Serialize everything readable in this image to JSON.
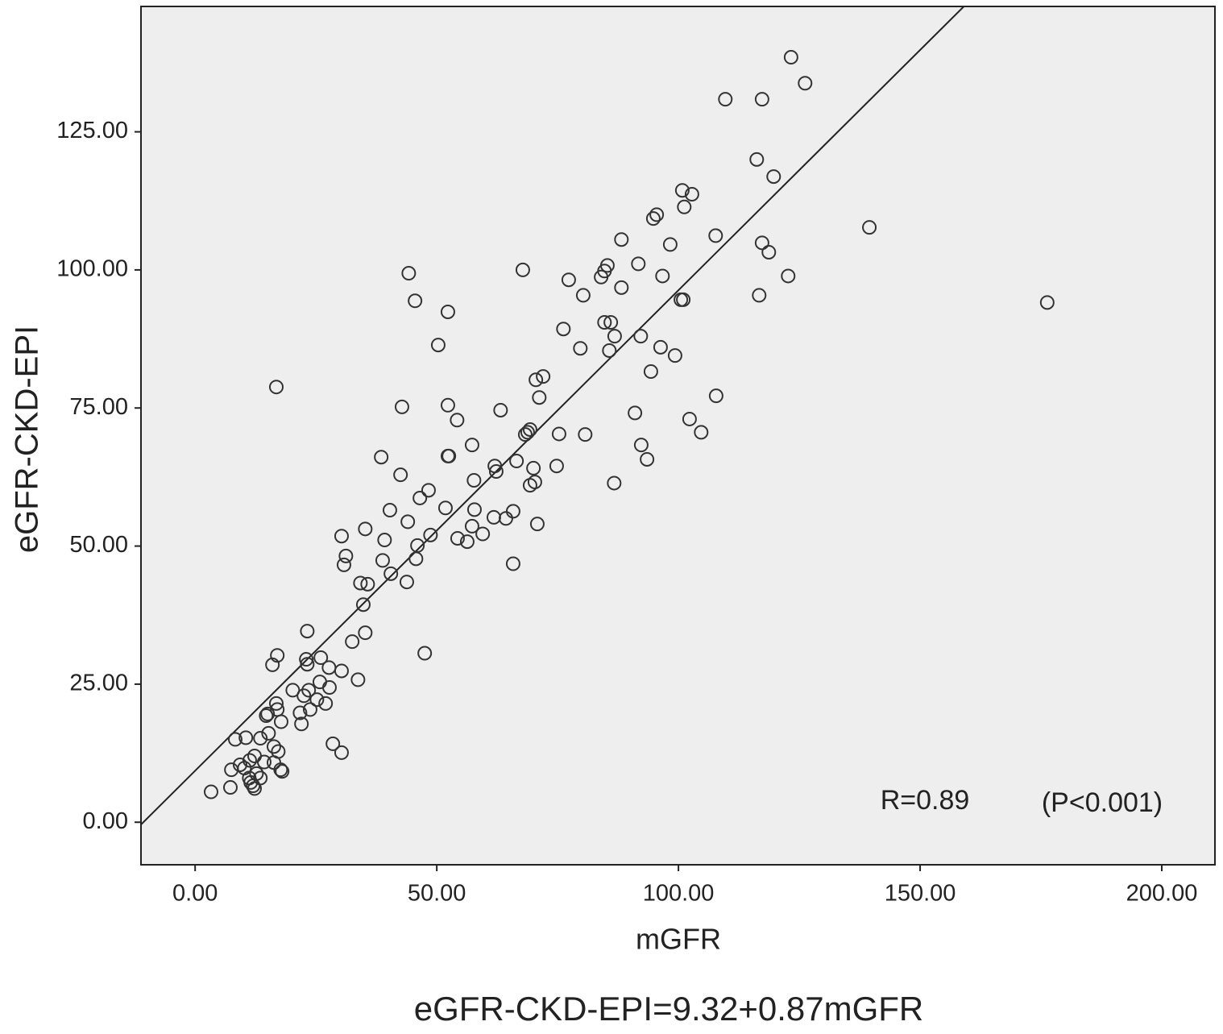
{
  "chart_data": {
    "type": "scatter",
    "x_label": "mGFR",
    "y_label": "eGFR-CKD-EPI",
    "caption": "eGFR-CKD-EPI=9.32+0.87mGFR",
    "annotations": [
      "R=0.89",
      "(P<0.001)"
    ],
    "fit": {
      "intercept": 9.32,
      "slope": 0.87
    },
    "color": "#333333",
    "background": "#eeeeee",
    "xlim": [
      -11.2,
      211
    ],
    "ylim": [
      -7.7,
      147.7
    ],
    "xticks": [
      {
        "value": 0,
        "label": "0.00"
      },
      {
        "value": 50,
        "label": "50.00"
      },
      {
        "value": 100,
        "label": "100.00"
      },
      {
        "value": 150,
        "label": "150.00"
      },
      {
        "value": 200,
        "label": "200.00"
      }
    ],
    "yticks": [
      {
        "value": 0,
        "label": "0.00"
      },
      {
        "value": 25,
        "label": "25.00"
      },
      {
        "value": 50,
        "label": "50.00"
      },
      {
        "value": 75,
        "label": "75.00"
      },
      {
        "value": 100,
        "label": "100.00"
      },
      {
        "value": 125,
        "label": "125.00"
      }
    ],
    "x": [
      123.3,
      126.2,
      109.7,
      117.3,
      116.2,
      119.7,
      100.8,
      102.8,
      101.2,
      95.5,
      94.8,
      88.2,
      107.7,
      98.3,
      117.3,
      118.7,
      139.5,
      85.3,
      84.7,
      84.0,
      91.7,
      96.7,
      122.7,
      77.3,
      67.8,
      44.2,
      80.3,
      88.2,
      100.5,
      101.0,
      116.7,
      176.3,
      45.5,
      52.3,
      84.7,
      86.0,
      86.8,
      76.2,
      92.2,
      85.7,
      79.7,
      96.3,
      99.3,
      50.3,
      94.3,
      16.8,
      72.0,
      70.5,
      71.2,
      107.8,
      42.8,
      52.3,
      63.2,
      91.0,
      54.2,
      102.3,
      104.7,
      75.3,
      80.7,
      69.3,
      68.3,
      68.8,
      57.3,
      92.3,
      52.3,
      52.5,
      38.5,
      66.5,
      93.5,
      74.8,
      62.0,
      62.3,
      70.0,
      42.5,
      57.7,
      70.3,
      69.3,
      86.7,
      48.3,
      46.5,
      51.8,
      57.8,
      40.3,
      65.8,
      61.8,
      64.3,
      44.0,
      70.8,
      35.2,
      57.3,
      59.5,
      54.3,
      56.3,
      48.7,
      30.3,
      39.2,
      46.0,
      31.2,
      38.8,
      45.7,
      65.8,
      30.8,
      40.5,
      34.2,
      35.7,
      43.8,
      34.8,
      23.2,
      35.2,
      32.5,
      47.5,
      17.0,
      16.0,
      26.0,
      23.0,
      23.2,
      27.7,
      30.3,
      33.7,
      25.8,
      27.8,
      23.5,
      20.2,
      22.5,
      25.2,
      16.8,
      27.0,
      17.0,
      23.8,
      21.7,
      15.0,
      14.7,
      17.8,
      22.0,
      15.2,
      8.3,
      10.5,
      13.5,
      28.5,
      16.3,
      17.2,
      30.3,
      12.3,
      11.3,
      14.3,
      16.3,
      9.3,
      10.2,
      7.5,
      17.7,
      18.0,
      12.7,
      11.2,
      13.5,
      11.5,
      12.0,
      12.3,
      7.3,
      3.3
    ],
    "values": [
      138.5,
      133.8,
      130.9,
      130.9,
      120.0,
      116.9,
      114.4,
      113.7,
      111.4,
      110.0,
      109.3,
      105.5,
      106.2,
      104.6,
      104.9,
      103.2,
      107.7,
      100.8,
      99.8,
      98.7,
      101.1,
      98.9,
      98.9,
      98.2,
      100.0,
      99.4,
      95.4,
      96.8,
      94.6,
      94.6,
      95.4,
      94.1,
      94.4,
      92.4,
      90.5,
      90.5,
      88.0,
      89.3,
      88.0,
      85.4,
      85.8,
      86.0,
      84.5,
      86.4,
      81.6,
      78.8,
      80.7,
      80.1,
      76.9,
      77.2,
      75.2,
      75.5,
      74.6,
      74.1,
      72.8,
      73.0,
      70.6,
      70.3,
      70.2,
      71.1,
      70.2,
      70.6,
      68.3,
      68.3,
      66.3,
      66.3,
      66.1,
      65.4,
      65.7,
      64.5,
      64.5,
      63.5,
      64.1,
      62.9,
      61.9,
      61.6,
      61.0,
      61.4,
      60.1,
      58.7,
      56.9,
      56.6,
      56.5,
      56.3,
      55.2,
      55.0,
      54.4,
      54.0,
      53.1,
      53.6,
      52.2,
      51.4,
      50.8,
      52.0,
      51.8,
      51.1,
      50.1,
      48.2,
      47.4,
      47.7,
      46.8,
      46.6,
      45.0,
      43.3,
      43.1,
      43.5,
      39.4,
      34.6,
      34.3,
      32.7,
      30.6,
      30.2,
      28.5,
      29.8,
      29.5,
      28.6,
      28.0,
      27.4,
      25.8,
      25.4,
      24.4,
      23.9,
      23.9,
      22.9,
      22.2,
      21.5,
      21.5,
      20.4,
      20.4,
      19.8,
      19.6,
      19.3,
      18.2,
      17.8,
      16.1,
      15.0,
      15.3,
      15.2,
      14.2,
      13.7,
      12.8,
      12.6,
      12.0,
      11.2,
      10.9,
      10.8,
      10.4,
      9.8,
      9.5,
      9.5,
      9.2,
      8.8,
      8.0,
      8.0,
      7.2,
      6.6,
      6.1,
      6.3,
      5.5
    ]
  }
}
